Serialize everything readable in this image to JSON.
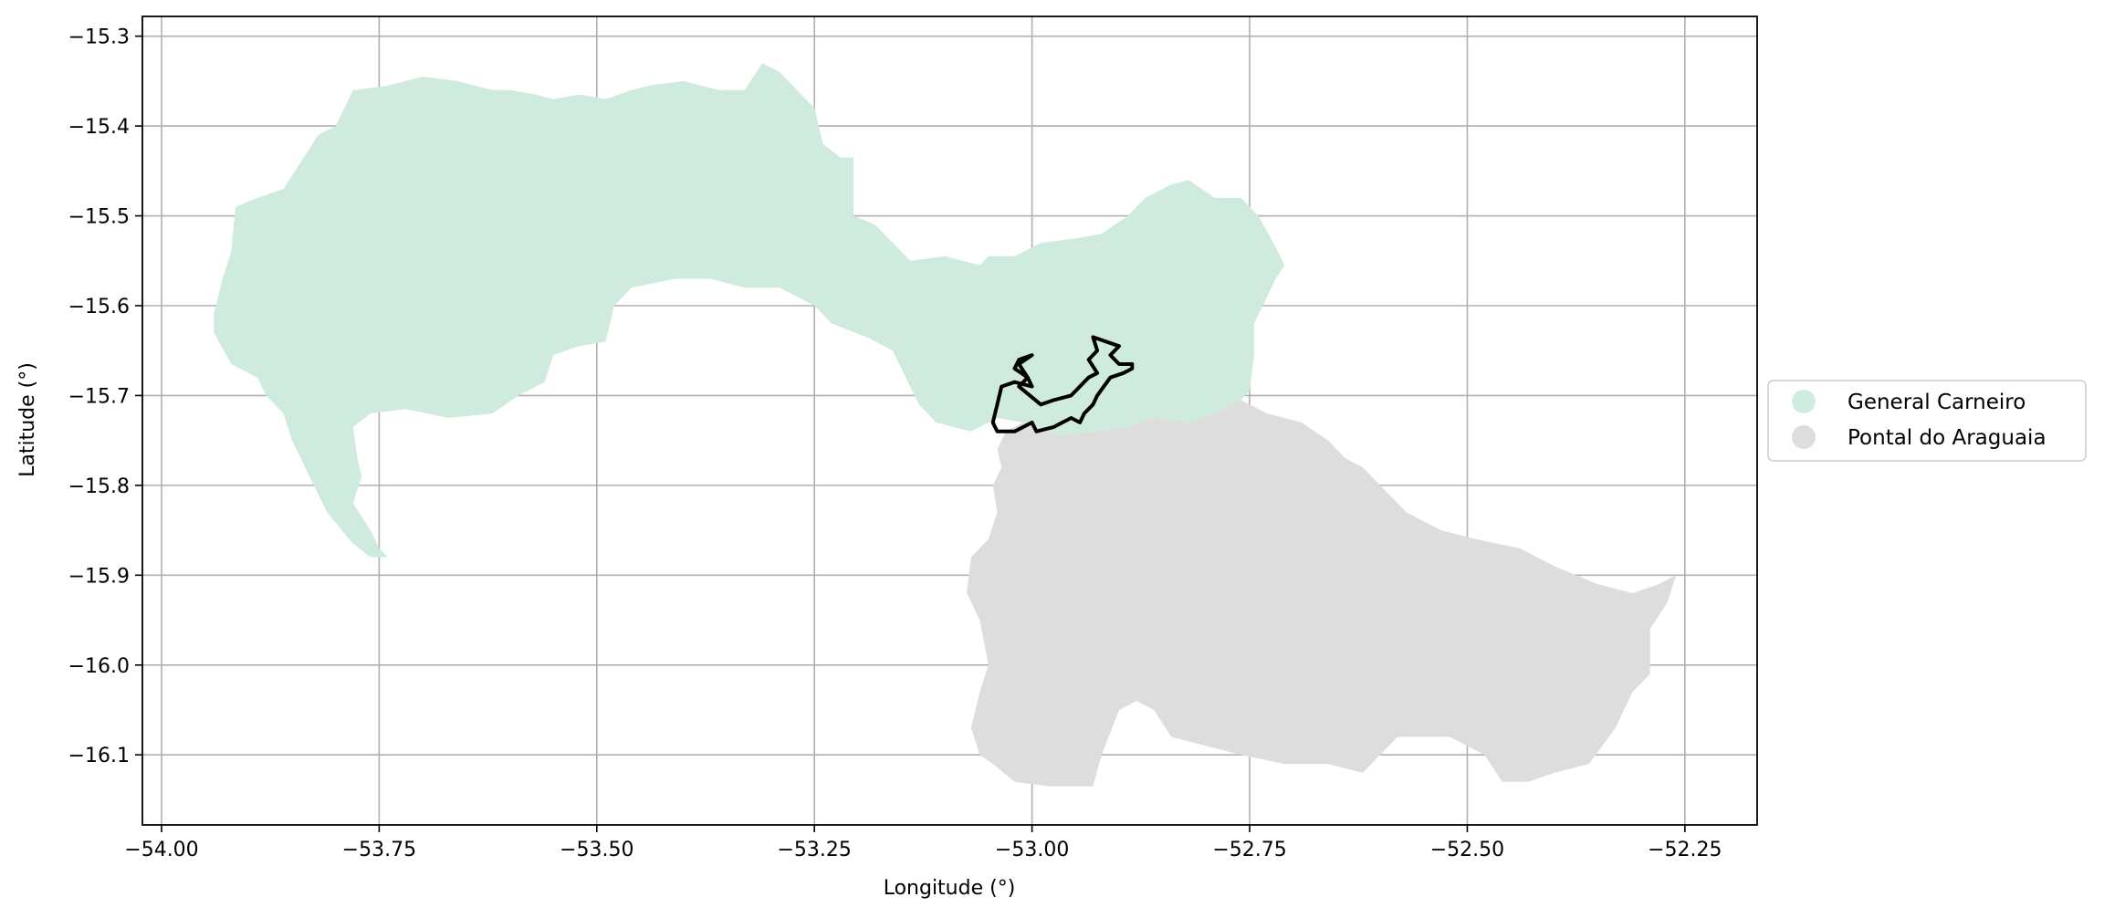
{
  "chart_data": {
    "type": "map",
    "xlabel": "Longitude (°)",
    "ylabel": "Latitude (°)",
    "xlim": [
      -54.022,
      -52.167
    ],
    "ylim": [
      -16.178,
      -15.278
    ],
    "x_ticks": [
      -54.0,
      -53.75,
      -53.5,
      -53.25,
      -53.0,
      -52.75,
      -52.5,
      -52.25
    ],
    "x_tick_labels": [
      "−54.00",
      "−53.75",
      "−53.50",
      "−53.25",
      "−53.00",
      "−52.75",
      "−52.50",
      "−52.25"
    ],
    "y_ticks": [
      -15.3,
      -15.4,
      -15.5,
      -15.6,
      -15.7,
      -15.8,
      -15.9,
      -16.0,
      -16.1
    ],
    "y_tick_labels": [
      "−15.3",
      "−15.4",
      "−15.5",
      "−15.6",
      "−15.7",
      "−15.8",
      "−15.9",
      "−16.0",
      "−16.1"
    ],
    "grid": true,
    "legend_position": "center-right-outside",
    "regions": [
      {
        "name": "General Carneiro",
        "color": "#cfebde",
        "polygon": [
          [
            -53.94,
            -15.61
          ],
          [
            -53.93,
            -15.57
          ],
          [
            -53.92,
            -15.54
          ],
          [
            -53.915,
            -15.49
          ],
          [
            -53.89,
            -15.48
          ],
          [
            -53.86,
            -15.47
          ],
          [
            -53.84,
            -15.44
          ],
          [
            -53.82,
            -15.41
          ],
          [
            -53.8,
            -15.4
          ],
          [
            -53.78,
            -15.36
          ],
          [
            -53.74,
            -15.355
          ],
          [
            -53.7,
            -15.345
          ],
          [
            -53.66,
            -15.35
          ],
          [
            -53.62,
            -15.36
          ],
          [
            -53.6,
            -15.36
          ],
          [
            -53.57,
            -15.365
          ],
          [
            -53.55,
            -15.37
          ],
          [
            -53.52,
            -15.365
          ],
          [
            -53.49,
            -15.37
          ],
          [
            -53.46,
            -15.36
          ],
          [
            -53.44,
            -15.355
          ],
          [
            -53.4,
            -15.35
          ],
          [
            -53.36,
            -15.36
          ],
          [
            -53.33,
            -15.36
          ],
          [
            -53.31,
            -15.33
          ],
          [
            -53.29,
            -15.34
          ],
          [
            -53.27,
            -15.36
          ],
          [
            -53.25,
            -15.38
          ],
          [
            -53.24,
            -15.42
          ],
          [
            -53.22,
            -15.435
          ],
          [
            -53.205,
            -15.435
          ],
          [
            -53.205,
            -15.5
          ],
          [
            -53.18,
            -15.51
          ],
          [
            -53.16,
            -15.53
          ],
          [
            -53.14,
            -15.55
          ],
          [
            -53.1,
            -15.545
          ],
          [
            -53.06,
            -15.555
          ],
          [
            -53.05,
            -15.545
          ],
          [
            -53.02,
            -15.545
          ],
          [
            -52.99,
            -15.53
          ],
          [
            -52.95,
            -15.525
          ],
          [
            -52.92,
            -15.52
          ],
          [
            -52.89,
            -15.5
          ],
          [
            -52.87,
            -15.48
          ],
          [
            -52.84,
            -15.465
          ],
          [
            -52.82,
            -15.46
          ],
          [
            -52.79,
            -15.48
          ],
          [
            -52.76,
            -15.48
          ],
          [
            -52.74,
            -15.5
          ],
          [
            -52.72,
            -15.535
          ],
          [
            -52.71,
            -15.555
          ],
          [
            -52.72,
            -15.57
          ],
          [
            -52.745,
            -15.62
          ],
          [
            -52.745,
            -15.655
          ],
          [
            -52.75,
            -15.695
          ],
          [
            -52.76,
            -15.705
          ],
          [
            -52.79,
            -15.72
          ],
          [
            -52.82,
            -15.73
          ],
          [
            -52.86,
            -15.725
          ],
          [
            -52.89,
            -15.735
          ],
          [
            -52.93,
            -15.74
          ],
          [
            -52.97,
            -15.745
          ],
          [
            -53.01,
            -15.73
          ],
          [
            -53.04,
            -15.725
          ],
          [
            -53.07,
            -15.74
          ],
          [
            -53.09,
            -15.735
          ],
          [
            -53.11,
            -15.73
          ],
          [
            -53.13,
            -15.71
          ],
          [
            -53.14,
            -15.69
          ],
          [
            -53.16,
            -15.65
          ],
          [
            -53.19,
            -15.635
          ],
          [
            -53.23,
            -15.62
          ],
          [
            -53.25,
            -15.6
          ],
          [
            -53.27,
            -15.59
          ],
          [
            -53.29,
            -15.58
          ],
          [
            -53.33,
            -15.58
          ],
          [
            -53.37,
            -15.57
          ],
          [
            -53.41,
            -15.57
          ],
          [
            -53.46,
            -15.58
          ],
          [
            -53.48,
            -15.6
          ],
          [
            -53.49,
            -15.64
          ],
          [
            -53.52,
            -15.645
          ],
          [
            -53.55,
            -15.655
          ],
          [
            -53.56,
            -15.685
          ],
          [
            -53.57,
            -15.69
          ],
          [
            -53.59,
            -15.7
          ],
          [
            -53.62,
            -15.72
          ],
          [
            -53.67,
            -15.725
          ],
          [
            -53.72,
            -15.715
          ],
          [
            -53.76,
            -15.72
          ],
          [
            -53.78,
            -15.735
          ],
          [
            -53.775,
            -15.77
          ],
          [
            -53.77,
            -15.79
          ],
          [
            -53.78,
            -15.82
          ],
          [
            -53.76,
            -15.85
          ],
          [
            -53.75,
            -15.87
          ],
          [
            -53.74,
            -15.88
          ],
          [
            -53.76,
            -15.88
          ],
          [
            -53.78,
            -15.865
          ],
          [
            -53.81,
            -15.83
          ],
          [
            -53.83,
            -15.79
          ],
          [
            -53.85,
            -15.75
          ],
          [
            -53.86,
            -15.72
          ],
          [
            -53.88,
            -15.7
          ],
          [
            -53.89,
            -15.68
          ],
          [
            -53.92,
            -15.665
          ],
          [
            -53.94,
            -15.63
          ]
        ]
      },
      {
        "name": "Pontal do Araguaia",
        "color": "#dddddd",
        "polygon": [
          [
            -53.03,
            -15.74
          ],
          [
            -53.04,
            -15.76
          ],
          [
            -53.035,
            -15.78
          ],
          [
            -53.045,
            -15.8
          ],
          [
            -53.04,
            -15.83
          ],
          [
            -53.05,
            -15.86
          ],
          [
            -53.07,
            -15.88
          ],
          [
            -53.075,
            -15.92
          ],
          [
            -53.06,
            -15.95
          ],
          [
            -53.05,
            -16.0
          ],
          [
            -53.06,
            -16.03
          ],
          [
            -53.07,
            -16.07
          ],
          [
            -53.06,
            -16.1
          ],
          [
            -53.045,
            -16.11
          ],
          [
            -53.02,
            -16.13
          ],
          [
            -52.98,
            -16.135
          ],
          [
            -52.93,
            -16.135
          ],
          [
            -52.92,
            -16.1
          ],
          [
            -52.9,
            -16.05
          ],
          [
            -52.88,
            -16.04
          ],
          [
            -52.86,
            -16.05
          ],
          [
            -52.84,
            -16.08
          ],
          [
            -52.8,
            -16.09
          ],
          [
            -52.76,
            -16.1
          ],
          [
            -52.71,
            -16.11
          ],
          [
            -52.66,
            -16.11
          ],
          [
            -52.62,
            -16.12
          ],
          [
            -52.58,
            -16.08
          ],
          [
            -52.52,
            -16.08
          ],
          [
            -52.48,
            -16.1
          ],
          [
            -52.46,
            -16.13
          ],
          [
            -52.43,
            -16.13
          ],
          [
            -52.4,
            -16.12
          ],
          [
            -52.36,
            -16.11
          ],
          [
            -52.33,
            -16.07
          ],
          [
            -52.31,
            -16.03
          ],
          [
            -52.29,
            -16.01
          ],
          [
            -52.29,
            -15.96
          ],
          [
            -52.27,
            -15.93
          ],
          [
            -52.26,
            -15.9
          ],
          [
            -52.28,
            -15.91
          ],
          [
            -52.31,
            -15.92
          ],
          [
            -52.35,
            -15.91
          ],
          [
            -52.4,
            -15.89
          ],
          [
            -52.44,
            -15.87
          ],
          [
            -52.49,
            -15.86
          ],
          [
            -52.53,
            -15.85
          ],
          [
            -52.57,
            -15.83
          ],
          [
            -52.6,
            -15.8
          ],
          [
            -52.62,
            -15.78
          ],
          [
            -52.64,
            -15.77
          ],
          [
            -52.66,
            -15.75
          ],
          [
            -52.69,
            -15.73
          ],
          [
            -52.73,
            -15.72
          ],
          [
            -52.76,
            -15.705
          ],
          [
            -52.79,
            -15.72
          ],
          [
            -52.82,
            -15.73
          ],
          [
            -52.86,
            -15.725
          ],
          [
            -52.89,
            -15.735
          ],
          [
            -52.93,
            -15.74
          ],
          [
            -52.97,
            -15.745
          ],
          [
            -53.01,
            -15.73
          ]
        ]
      }
    ],
    "outline": {
      "color": "#000000",
      "polygon": [
        [
          -53.0,
          -15.655
        ],
        [
          -53.015,
          -15.66
        ],
        [
          -53.02,
          -15.67
        ],
        [
          -53.005,
          -15.68
        ],
        [
          -53.0,
          -15.69
        ],
        [
          -53.02,
          -15.685
        ],
        [
          -53.035,
          -15.69
        ],
        [
          -53.04,
          -15.71
        ],
        [
          -53.045,
          -15.73
        ],
        [
          -53.04,
          -15.74
        ],
        [
          -53.02,
          -15.74
        ],
        [
          -53.0,
          -15.73
        ],
        [
          -52.995,
          -15.74
        ],
        [
          -52.975,
          -15.735
        ],
        [
          -52.955,
          -15.725
        ],
        [
          -52.945,
          -15.73
        ],
        [
          -52.94,
          -15.72
        ],
        [
          -52.93,
          -15.71
        ],
        [
          -52.925,
          -15.7
        ],
        [
          -52.91,
          -15.68
        ],
        [
          -52.895,
          -15.675
        ],
        [
          -52.885,
          -15.67
        ],
        [
          -52.885,
          -15.665
        ],
        [
          -52.9,
          -15.665
        ],
        [
          -52.91,
          -15.655
        ],
        [
          -52.9,
          -15.645
        ],
        [
          -52.93,
          -15.635
        ],
        [
          -52.925,
          -15.65
        ],
        [
          -52.935,
          -15.66
        ],
        [
          -52.925,
          -15.675
        ],
        [
          -52.935,
          -15.68
        ],
        [
          -52.955,
          -15.7
        ],
        [
          -52.975,
          -15.705
        ],
        [
          -52.99,
          -15.71
        ],
        [
          -53.015,
          -15.69
        ],
        [
          -53.005,
          -15.68
        ],
        [
          -53.015,
          -15.665
        ]
      ]
    },
    "legend": [
      {
        "label": "General Carneiro",
        "color": "#cfebde"
      },
      {
        "label": "Pontal do Araguaia",
        "color": "#dddddd"
      }
    ]
  }
}
